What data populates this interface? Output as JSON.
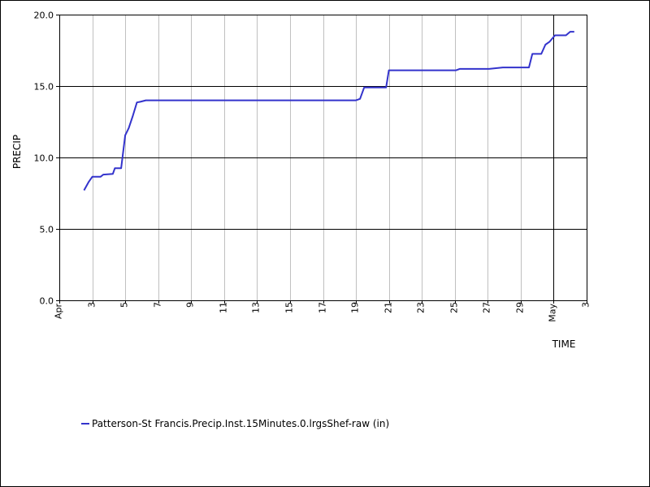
{
  "chart_data": {
    "type": "line",
    "title": "",
    "xlabel": "TIME",
    "ylabel": "PRECIP",
    "ylim": [
      0,
      20
    ],
    "y_ticks": [
      {
        "value": 0,
        "label": "0.0"
      },
      {
        "value": 5,
        "label": "5.0"
      },
      {
        "value": 10,
        "label": "10.0"
      },
      {
        "value": 15,
        "label": "15.0"
      },
      {
        "value": 20,
        "label": "20.0"
      }
    ],
    "xlim": [
      "2024-04-01",
      "2024-05-03"
    ],
    "x_ticks": [
      {
        "date": "2024-04-01",
        "label": "Apr",
        "major": true
      },
      {
        "date": "2024-04-03",
        "label": "3",
        "major": false
      },
      {
        "date": "2024-04-05",
        "label": "5",
        "major": false
      },
      {
        "date": "2024-04-07",
        "label": "7",
        "major": false
      },
      {
        "date": "2024-04-09",
        "label": "9",
        "major": false
      },
      {
        "date": "2024-04-11",
        "label": "11",
        "major": false
      },
      {
        "date": "2024-04-13",
        "label": "13",
        "major": false
      },
      {
        "date": "2024-04-15",
        "label": "15",
        "major": false
      },
      {
        "date": "2024-04-17",
        "label": "17",
        "major": false
      },
      {
        "date": "2024-04-19",
        "label": "19",
        "major": false
      },
      {
        "date": "2024-04-21",
        "label": "21",
        "major": false
      },
      {
        "date": "2024-04-23",
        "label": "23",
        "major": false
      },
      {
        "date": "2024-04-25",
        "label": "25",
        "major": false
      },
      {
        "date": "2024-04-27",
        "label": "27",
        "major": false
      },
      {
        "date": "2024-04-29",
        "label": "29",
        "major": false
      },
      {
        "date": "2024-05-01",
        "label": "May",
        "major": true
      },
      {
        "date": "2024-05-03",
        "label": "3",
        "major": false
      }
    ],
    "grid": true,
    "legend_position": "bottom-left",
    "series": [
      {
        "name": "Patterson-St Francis.Precip.Inst.15Minutes.0.lrgsShef-raw (in)",
        "color": "#3333cc",
        "points": [
          [
            "2024-04-02T12:00",
            7.7
          ],
          [
            "2024-04-02T19:00",
            8.3
          ],
          [
            "2024-04-03T00:00",
            8.65
          ],
          [
            "2024-04-03T12:00",
            8.65
          ],
          [
            "2024-04-03T16:00",
            8.8
          ],
          [
            "2024-04-04T06:00",
            8.85
          ],
          [
            "2024-04-04T09:00",
            9.25
          ],
          [
            "2024-04-04T18:00",
            9.25
          ],
          [
            "2024-04-05T00:00",
            11.55
          ],
          [
            "2024-04-05T05:00",
            12.05
          ],
          [
            "2024-04-05T11:00",
            12.9
          ],
          [
            "2024-04-05T17:00",
            13.85
          ],
          [
            "2024-04-05T22:00",
            13.9
          ],
          [
            "2024-04-06T06:00",
            14.0
          ],
          [
            "2024-04-19T00:00",
            14.0
          ],
          [
            "2024-04-19T06:00",
            14.1
          ],
          [
            "2024-04-19T12:00",
            14.9
          ],
          [
            "2024-04-20T20:00",
            14.9
          ],
          [
            "2024-04-21T00:00",
            16.1
          ],
          [
            "2024-04-25T02:00",
            16.1
          ],
          [
            "2024-04-25T07:00",
            16.2
          ],
          [
            "2024-04-27T02:00",
            16.2
          ],
          [
            "2024-04-27T22:00",
            16.3
          ],
          [
            "2024-04-29T12:00",
            16.3
          ],
          [
            "2024-04-29T17:00",
            17.25
          ],
          [
            "2024-04-30T06:00",
            17.25
          ],
          [
            "2024-04-30T12:00",
            17.9
          ],
          [
            "2024-04-30T18:00",
            18.1
          ],
          [
            "2024-05-01T02:00",
            18.55
          ],
          [
            "2024-05-01T18:00",
            18.55
          ],
          [
            "2024-05-02T00:00",
            18.8
          ],
          [
            "2024-05-02T06:00",
            18.8
          ]
        ]
      }
    ]
  }
}
